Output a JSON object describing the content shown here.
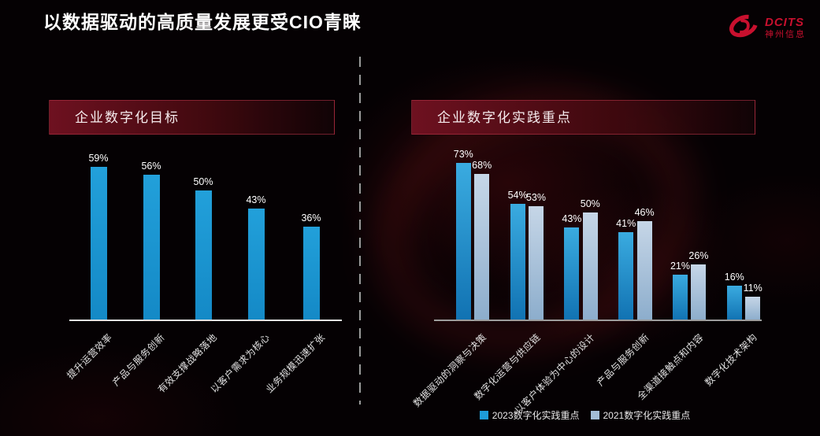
{
  "slide": {
    "title": "以数据驱动的高质量发展更受CIO青睐"
  },
  "logo": {
    "brand": "DCITS",
    "company": "神州信息",
    "color": "#c8102e"
  },
  "left_panel": {
    "header": "企业数字化目标"
  },
  "right_panel": {
    "header": "企业数字化实践重点"
  },
  "chart_data": [
    {
      "type": "bar",
      "title": "企业数字化目标",
      "categories": [
        "提升运营效率",
        "产品与服务创新",
        "有效支撑战略落地",
        "以客户需求为核心",
        "业务规模迅速扩张"
      ],
      "values": [
        59,
        56,
        50,
        43,
        36
      ],
      "data_labels": [
        "59%",
        "56%",
        "50%",
        "43%",
        "36%"
      ],
      "unit": "%",
      "ylim": [
        0,
        65
      ],
      "grid": false,
      "bar_color": "#1b9cd8",
      "legend_position": "none"
    },
    {
      "type": "bar",
      "title": "企业数字化实践重点",
      "categories": [
        "数据驱动的洞察与决策",
        "数字化运营与供应链",
        "以客户体验为中心的设计",
        "产品与服务创新",
        "全渠道接触点和内容",
        "数字化技术架构"
      ],
      "series": [
        {
          "name": "2023数字化实践重点",
          "color": "#1e9cd8",
          "values": [
            73,
            54,
            43,
            41,
            21,
            16
          ],
          "data_labels": [
            "73%",
            "54%",
            "43%",
            "41%",
            "21%",
            "16%"
          ]
        },
        {
          "name": "2021数字化实践重点",
          "color": "#a3bcd6",
          "values": [
            68,
            53,
            50,
            46,
            26,
            11
          ],
          "data_labels": [
            "68%",
            "53%",
            "50%",
            "46%",
            "26%",
            "11%"
          ]
        }
      ],
      "unit": "%",
      "ylim": [
        0,
        80
      ],
      "grid": false,
      "legend_position": "bottom"
    }
  ]
}
